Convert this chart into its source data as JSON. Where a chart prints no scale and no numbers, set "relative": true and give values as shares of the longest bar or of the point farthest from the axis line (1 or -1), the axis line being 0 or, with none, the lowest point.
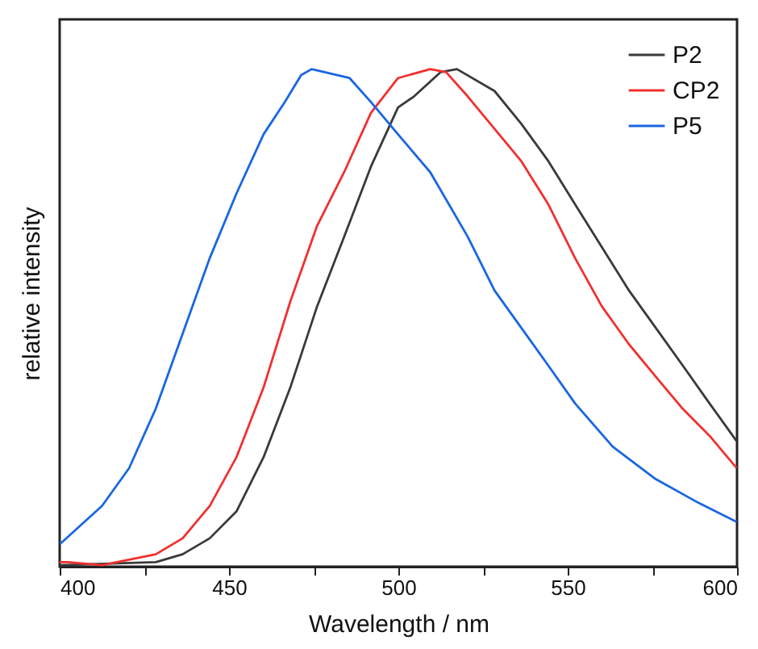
{
  "chart_data": {
    "type": "line",
    "xlabel": "Wavelength / nm",
    "ylabel": "relative intensity",
    "relative": true,
    "xlim": [
      400,
      600
    ],
    "xticks": [
      400,
      {
        "value": 425,
        "label": null
      },
      450,
      {
        "value": 475,
        "label": null
      },
      500,
      {
        "value": 525,
        "label": null
      },
      550,
      {
        "value": 575,
        "label": null
      },
      600
    ],
    "legend": "top right",
    "grid": false,
    "line_style": "solid",
    "series": [
      {
        "name": "P2",
        "color": "#3a3a3a",
        "x": [
          400,
          428.4,
          436.3,
          444.3,
          452.2,
          460.2,
          468.1,
          476,
          484,
          491.9,
          499.9,
          504.6,
          512.5,
          517.3,
          528.4,
          536.3,
          544.3,
          552.2,
          560.1,
          568.1,
          576,
          584,
          591.9,
          599.9
        ],
        "values": [
          0.003,
          0.009,
          0.025,
          0.057,
          0.111,
          0.22,
          0.36,
          0.523,
          0.663,
          0.804,
          0.923,
          0.945,
          0.994,
          1.0,
          0.956,
          0.89,
          0.815,
          0.728,
          0.642,
          0.555,
          0.48,
          0.404,
          0.328,
          0.252
        ]
      },
      {
        "name": "CP2",
        "color": "#f03030",
        "x": [
          400,
          402.5,
          412.5,
          428.4,
          436.3,
          444.3,
          452.2,
          460.2,
          468.1,
          476,
          484,
          491.9,
          499.9,
          509.4,
          514.1,
          520.5,
          528.4,
          536.3,
          544.3,
          552.2,
          560.1,
          568.1,
          576,
          584,
          591.9,
          599.9
        ],
        "values": [
          0.009,
          0.009,
          0.003,
          0.025,
          0.057,
          0.122,
          0.22,
          0.36,
          0.533,
          0.685,
          0.793,
          0.912,
          0.982,
          1.0,
          0.994,
          0.945,
          0.88,
          0.815,
          0.728,
          0.62,
          0.523,
          0.447,
          0.382,
          0.317,
          0.263,
          0.198
        ]
      },
      {
        "name": "P5",
        "color": "#1a66e0",
        "x": [
          400,
          412.5,
          420.5,
          428.4,
          436.3,
          444.3,
          452.2,
          460.2,
          466.5,
          471.3,
          474.4,
          485.6,
          491.9,
          499.9,
          509.4,
          520.5,
          528.4,
          536.3,
          544.3,
          552.2,
          563.3,
          576,
          588.7,
          599.9
        ],
        "values": [
          0.045,
          0.122,
          0.198,
          0.318,
          0.468,
          0.62,
          0.75,
          0.869,
          0.934,
          0.988,
          1.0,
          0.982,
          0.934,
          0.869,
          0.793,
          0.663,
          0.555,
          0.48,
          0.404,
          0.328,
          0.241,
          0.176,
          0.128,
          0.09
        ]
      }
    ]
  }
}
